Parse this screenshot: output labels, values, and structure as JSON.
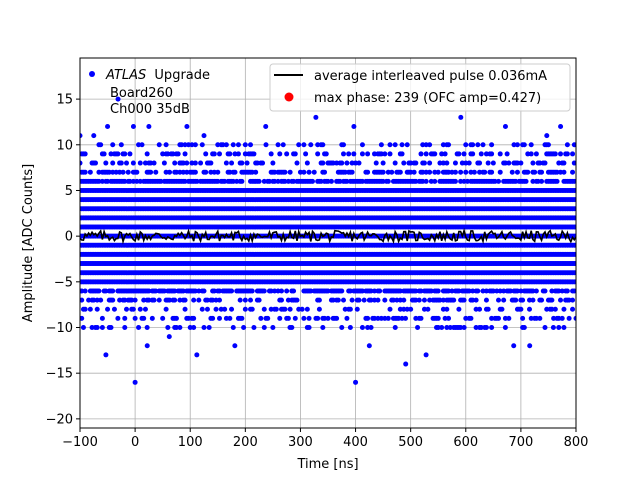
{
  "chart_data": {
    "type": "scatter",
    "title": "",
    "xlabel": "Time [ns]",
    "ylabel": "Amplitude [ADC Counts]",
    "xlim": [
      -100,
      800
    ],
    "ylim": [
      -21,
      19.5
    ],
    "x_ticks": [
      -100,
      0,
      100,
      200,
      300,
      400,
      500,
      600,
      700,
      800
    ],
    "y_ticks": [
      -20,
      -15,
      -10,
      -5,
      0,
      5,
      10,
      15
    ],
    "grid": true,
    "annotation": {
      "atlas": "ATLAS",
      "upgrade": "Upgrade",
      "board": "Board260",
      "channel": "Ch000 35dB"
    },
    "legend": {
      "placement": "top-right",
      "entries": [
        {
          "label": "average interleaved pulse 0.036mA",
          "color": "#000000",
          "marker": "line"
        },
        {
          "label": "max phase: 239 (OFC amp=0.427)",
          "color": "#ff0000",
          "marker": "dot"
        }
      ]
    },
    "scatter_series": {
      "color": "#0000ff",
      "x_start": -100,
      "x_step": 3.125,
      "x_end": 800,
      "dense_amplitude_range": [
        -7,
        7
      ],
      "outliers": [
        {
          "x": -100,
          "y": 11
        },
        {
          "x": -75,
          "y": 11
        },
        {
          "x": -50,
          "y": 12
        },
        {
          "x": -31,
          "y": 15
        },
        {
          "x": -3,
          "y": 12
        },
        {
          "x": 25,
          "y": 12
        },
        {
          "x": 94,
          "y": 12
        },
        {
          "x": 125,
          "y": 11
        },
        {
          "x": 237,
          "y": 12
        },
        {
          "x": 328,
          "y": 13
        },
        {
          "x": 397,
          "y": 12
        },
        {
          "x": 591,
          "y": 13
        },
        {
          "x": 672,
          "y": 12
        },
        {
          "x": 747,
          "y": 11
        },
        {
          "x": 772,
          "y": 12
        },
        {
          "x": 797,
          "y": 10
        },
        {
          "x": -53,
          "y": -13
        },
        {
          "x": 0,
          "y": -16
        },
        {
          "x": 22,
          "y": -12
        },
        {
          "x": 62,
          "y": -11
        },
        {
          "x": 112,
          "y": -13
        },
        {
          "x": 181,
          "y": -12
        },
        {
          "x": 400,
          "y": -16
        },
        {
          "x": 425,
          "y": -12
        },
        {
          "x": 491,
          "y": -14
        },
        {
          "x": 528,
          "y": -13
        },
        {
          "x": 687,
          "y": -12
        },
        {
          "x": 716,
          "y": -12
        },
        {
          "x": -72,
          "y": -10
        },
        {
          "x": 125,
          "y": -10
        },
        {
          "x": 281,
          "y": -10
        },
        {
          "x": 472,
          "y": -10
        },
        {
          "x": 597,
          "y": -10
        },
        {
          "x": 759,
          "y": -10
        }
      ]
    },
    "average_pulse": {
      "color": "#000000",
      "x_start": -100,
      "x_step": 3.125,
      "x_end": 800,
      "noise_amplitude": 0.6,
      "baseline": 0
    },
    "max_phase_point": {
      "x": 239,
      "y": 0.427,
      "color": "#ff0000"
    }
  }
}
